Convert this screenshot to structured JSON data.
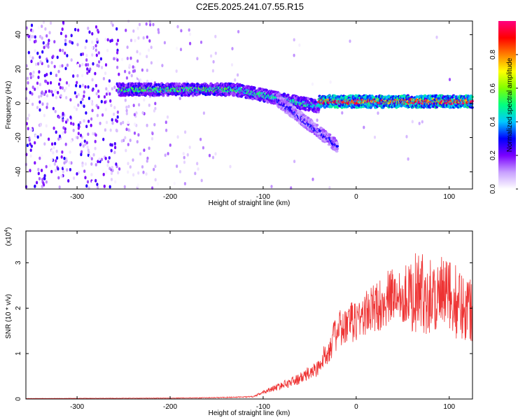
{
  "title": "C2E5.2025.241.07.55.R15",
  "chart_data": [
    {
      "type": "heatmap",
      "xlabel": "Height of straight line (km)",
      "ylabel": "Frequency (Hz)",
      "xlim": [
        -355,
        125
      ],
      "ylim": [
        -50,
        48
      ],
      "x_ticks": [
        -300,
        -200,
        -100,
        0,
        100
      ],
      "y_ticks": [
        -40,
        -20,
        0,
        20,
        40
      ],
      "colorbar": {
        "label": "Normalized spectral amplitude",
        "range": [
          0,
          1
        ],
        "ticks": [
          0.0,
          0.2,
          0.4,
          0.6,
          0.8
        ],
        "tick_labels": [
          "0.0",
          "0.2",
          "0.4",
          "0.6",
          "0.8"
        ],
        "colors": [
          "#ffffff",
          "#c8a0ff",
          "#7a00ff",
          "#0000ff",
          "#00c8ff",
          "#00ff80",
          "#80ff00",
          "#ffff00",
          "#ff8000",
          "#ff0000",
          "#ff0080"
        ]
      },
      "features": [
        {
          "x_start": -255,
          "x_end": -130,
          "freq": 8,
          "amplitude": 0.55
        },
        {
          "x_start": -130,
          "x_end": -40,
          "freq_start": 8,
          "freq_end": -2,
          "amplitude": 0.5
        },
        {
          "x_start": -85,
          "x_end": -20,
          "freq_start": 2,
          "freq_end": -25,
          "amplitude": 0.3
        },
        {
          "x_start": -40,
          "x_end": 125,
          "freq": 1,
          "amplitude": 0.95
        }
      ]
    },
    {
      "type": "line",
      "xlabel": "Height of straight line (km)",
      "ylabel": "SNR (10 * v/v)",
      "y_multiplier": "(x10",
      "y_multiplier_exp": "4",
      "y_multiplier_close": ")",
      "xlim": [
        -355,
        125
      ],
      "ylim": [
        0,
        3.7
      ],
      "x_ticks": [
        -300,
        -200,
        -100,
        0,
        100
      ],
      "y_ticks": [
        0,
        1,
        2,
        3
      ],
      "series": [
        {
          "color": "#ee3333",
          "envelope": {
            "x": [
              -355,
              -200,
              -150,
              -110,
              -100,
              -80,
              -60,
              -40,
              -30,
              -20,
              -10,
              0,
              20,
              40,
              60,
              80,
              100,
              110,
              125
            ],
            "y": [
              0.01,
              0.02,
              0.03,
              0.05,
              0.15,
              0.3,
              0.45,
              0.7,
              1.1,
              1.5,
              1.6,
              1.75,
              2.0,
              2.3,
              2.35,
              2.3,
              2.25,
              2.1,
              2.0
            ]
          }
        }
      ]
    }
  ]
}
